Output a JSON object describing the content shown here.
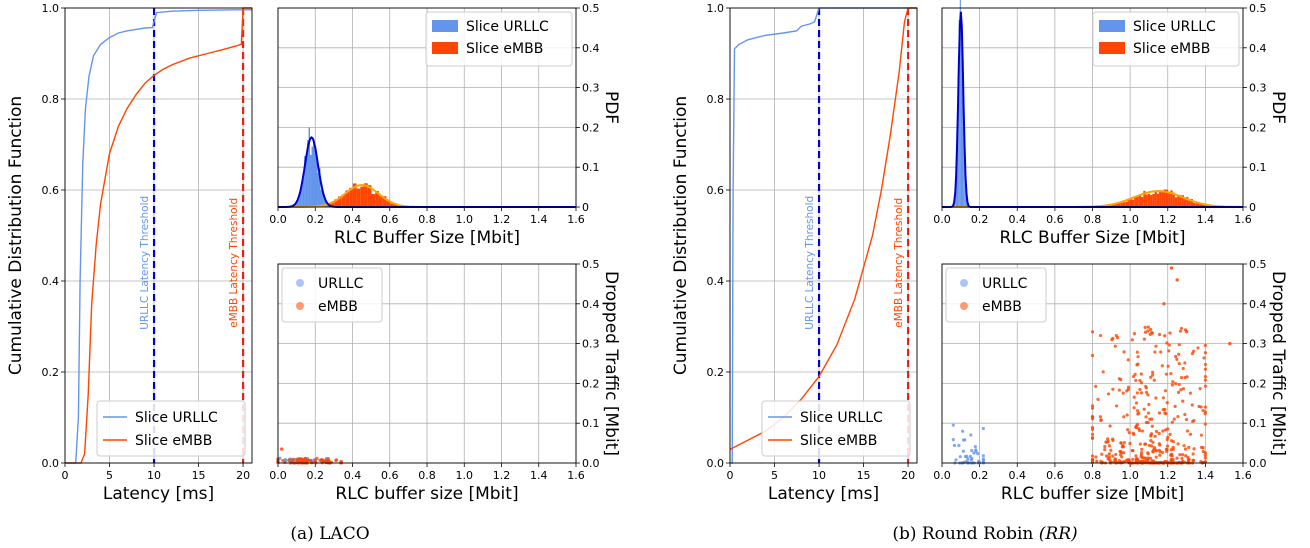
{
  "captions": [
    {
      "prefix": "(a) LACO",
      "math": ""
    },
    {
      "prefix": "(b) Round Robin ",
      "math": "(RR)"
    }
  ],
  "labels": {
    "cdf_x": "Latency [ms]",
    "cdf_y": "Cumulative Distribution Function",
    "pdf_x": "RLC Buffer Size [Mbit]",
    "pdf_y": "PDF",
    "drop_x": "RLC buffer size [Mbit]",
    "drop_y": "Dropped Traffic [Mbit]",
    "urllc_threshold": "URLLC Latency Threshold",
    "embb_threshold": "eMBB Latency Threshold"
  },
  "legends": {
    "cdf": [
      "Slice URLLC",
      "Slice eMBB"
    ],
    "pdf": [
      "Slice URLLC",
      "Slice eMBB"
    ],
    "drop": [
      "URLLC",
      "eMBB"
    ]
  },
  "colors": {
    "urllc": "#6495ED",
    "embb": "#FF4500",
    "urllc_dark": "#0000CD",
    "embb_fit": "#FFA500",
    "threshold_urllc": "#0000CD",
    "threshold_embb": "#E8201A"
  },
  "chart_data": [
    {
      "id": "laco_cdf",
      "type": "line",
      "xlabel": "Latency [ms]",
      "ylabel": "Cumulative Distribution Function",
      "xlim": [
        0,
        21
      ],
      "ylim": [
        0,
        1
      ],
      "xticks": [
        0,
        5,
        10,
        15,
        20
      ],
      "yticks": [
        0.0,
        0.2,
        0.4,
        0.6,
        0.8,
        1.0
      ],
      "thresholds": [
        10,
        20
      ],
      "series": [
        {
          "name": "Slice URLLC",
          "x": [
            0,
            1.2,
            1.5,
            1.7,
            2.0,
            2.3,
            2.7,
            3.2,
            4.0,
            5.0,
            6.0,
            7.0,
            8.0,
            9.0,
            9.8,
            10.0,
            10.3,
            12,
            15,
            19,
            21
          ],
          "y": [
            0,
            0,
            0.1,
            0.4,
            0.66,
            0.78,
            0.85,
            0.895,
            0.92,
            0.935,
            0.945,
            0.95,
            0.953,
            0.956,
            0.957,
            0.97,
            0.99,
            0.993,
            0.995,
            0.996,
            0.996
          ]
        },
        {
          "name": "Slice eMBB",
          "x": [
            0,
            1.8,
            2.2,
            2.6,
            3.0,
            3.5,
            4.0,
            5.0,
            6.0,
            7.0,
            8.0,
            9.0,
            10.0,
            11.0,
            12.0,
            14.0,
            16.0,
            18.0,
            19.8,
            20.0,
            21
          ],
          "y": [
            0,
            0,
            0.02,
            0.15,
            0.35,
            0.48,
            0.57,
            0.68,
            0.74,
            0.78,
            0.81,
            0.835,
            0.852,
            0.865,
            0.875,
            0.89,
            0.9,
            0.91,
            0.92,
            1.0,
            1.0
          ]
        }
      ]
    },
    {
      "id": "laco_pdf",
      "type": "histogram",
      "xlabel": "RLC Buffer Size [Mbit]",
      "ylabel": "PDF",
      "xlim": [
        0,
        1.6
      ],
      "ylim": [
        0,
        0.5
      ],
      "xticks": [
        0.0,
        0.2,
        0.4,
        0.6,
        0.8,
        1.0,
        1.2,
        1.4,
        1.6
      ],
      "yticks": [
        0,
        0.1,
        0.2,
        0.3,
        0.4,
        0.5
      ],
      "series": [
        {
          "name": "Slice URLLC",
          "mean": 0.18,
          "std": 0.035,
          "peak": 0.175
        },
        {
          "name": "Slice eMBB",
          "mean": 0.45,
          "std": 0.09,
          "peak": 0.055
        }
      ]
    },
    {
      "id": "laco_drop",
      "type": "scatter",
      "xlabel": "RLC buffer size [Mbit]",
      "ylabel": "Dropped Traffic [Mbit]",
      "xlim": [
        0,
        1.6
      ],
      "ylim": [
        0,
        0.5
      ],
      "xticks": [
        0.0,
        0.2,
        0.4,
        0.6,
        0.8,
        1.0,
        1.2,
        1.4,
        1.6
      ],
      "yticks": [
        0.0,
        0.1,
        0.2,
        0.3,
        0.4,
        0.5
      ],
      "series": [
        {
          "name": "URLLC",
          "xrange": [
            0.0,
            0.26
          ],
          "yrange": [
            0.006,
            0.012
          ],
          "count": 40
        },
        {
          "name": "eMBB",
          "xrange": [
            0.0,
            0.34
          ],
          "yrange": [
            0.0,
            0.012
          ],
          "count": 70,
          "outliers": [
            [
              0.02,
              0.035
            ]
          ]
        }
      ]
    },
    {
      "id": "rr_cdf",
      "type": "line",
      "xlabel": "Latency [ms]",
      "ylabel": "Cumulative Distribution Function",
      "xlim": [
        0,
        21
      ],
      "ylim": [
        0,
        1
      ],
      "xticks": [
        0,
        5,
        10,
        15,
        20
      ],
      "yticks": [
        0.0,
        0.2,
        0.4,
        0.6,
        0.8,
        1.0
      ],
      "thresholds": [
        10,
        20
      ],
      "series": [
        {
          "name": "Slice URLLC",
          "x": [
            0,
            0.25,
            0.35,
            0.5,
            1.0,
            2.0,
            4.0,
            6.0,
            7.5,
            8.0,
            9.0,
            9.5,
            10.0,
            11,
            15,
            21
          ],
          "y": [
            0,
            0,
            0.6,
            0.91,
            0.92,
            0.93,
            0.94,
            0.945,
            0.95,
            0.96,
            0.965,
            0.97,
            1.0,
            1.0,
            1.0,
            1.0
          ]
        },
        {
          "name": "Slice eMBB",
          "x": [
            0,
            2,
            4,
            6,
            8,
            10,
            12,
            14,
            16,
            17,
            18,
            19,
            19.6,
            20.0,
            21
          ],
          "y": [
            0.03,
            0.05,
            0.07,
            0.1,
            0.14,
            0.19,
            0.26,
            0.36,
            0.5,
            0.6,
            0.72,
            0.86,
            0.97,
            1.0,
            1.0
          ]
        }
      ]
    },
    {
      "id": "rr_pdf",
      "type": "histogram",
      "xlabel": "RLC Buffer Size [Mbit]",
      "ylabel": "PDF",
      "xlim": [
        0,
        1.6
      ],
      "ylim": [
        0,
        0.5
      ],
      "xticks": [
        0.0,
        0.2,
        0.4,
        0.6,
        0.8,
        1.0,
        1.2,
        1.4,
        1.6
      ],
      "yticks": [
        0,
        0.1,
        0.2,
        0.3,
        0.4,
        0.5
      ],
      "series": [
        {
          "name": "Slice URLLC",
          "mean": 0.1,
          "std": 0.013,
          "peak": 0.49
        },
        {
          "name": "Slice eMBB",
          "mean": 1.15,
          "std": 0.13,
          "peak": 0.04
        }
      ]
    },
    {
      "id": "rr_drop",
      "type": "scatter",
      "xlabel": "RLC buffer size [Mbit]",
      "ylabel": "Dropped Traffic [Mbit]",
      "xlim": [
        0,
        1.6
      ],
      "ylim": [
        0,
        0.5
      ],
      "xticks": [
        0.0,
        0.2,
        0.4,
        0.6,
        0.8,
        1.0,
        1.2,
        1.4,
        1.6
      ],
      "yticks": [
        0.0,
        0.1,
        0.2,
        0.3,
        0.4,
        0.5
      ],
      "series": [
        {
          "name": "URLLC",
          "xrange": [
            0.06,
            0.22
          ],
          "yrange": [
            0.0,
            0.1
          ],
          "count": 45
        },
        {
          "name": "eMBB",
          "xrange": [
            0.8,
            1.4
          ],
          "yrange": [
            0.0,
            0.35
          ],
          "count": 420,
          "outliers": [
            [
              1.22,
              0.49
            ],
            [
              1.25,
              0.46
            ],
            [
              1.53,
              0.3
            ],
            [
              1.3,
              0.33
            ],
            [
              1.18,
              0.4
            ]
          ]
        }
      ]
    }
  ]
}
